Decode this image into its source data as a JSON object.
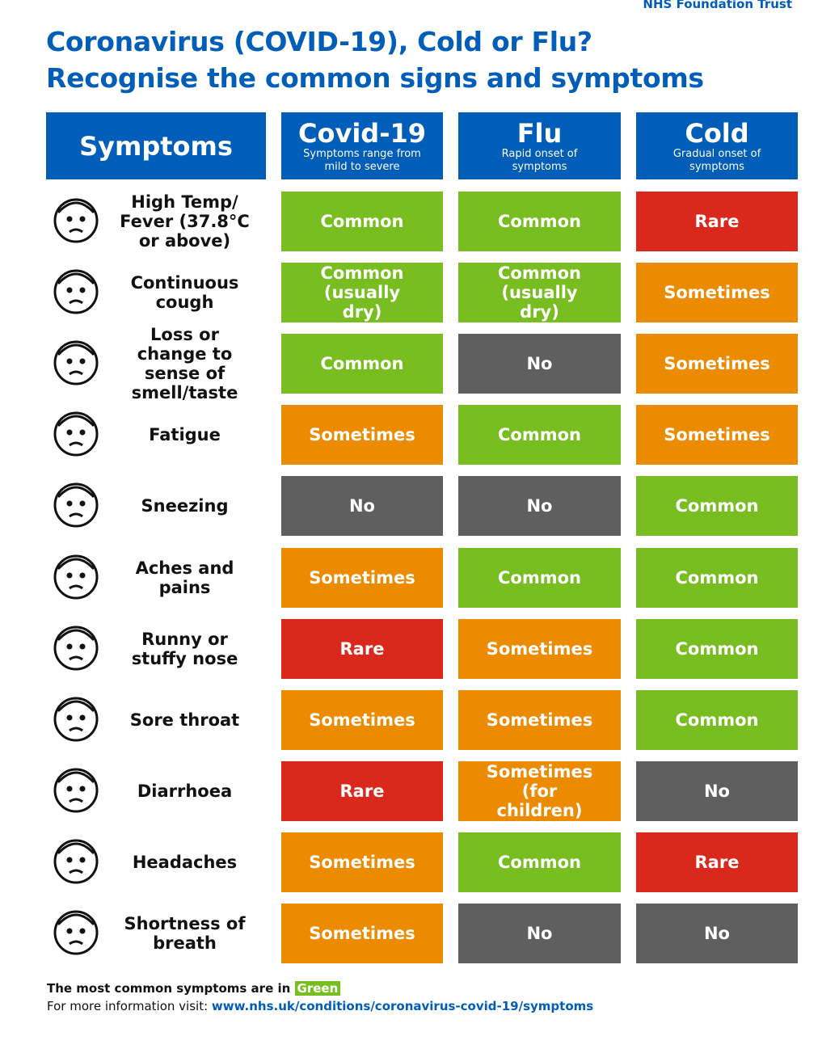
{
  "header": {
    "organisation": "NHS Foundation Trust",
    "title": [
      "Coronavirus (COVID-19), Cold or Flu?",
      "Recognise the common signs and symptoms"
    ],
    "color": "#005eb8"
  },
  "table": {
    "header_color": "#005eb8",
    "columns": [
      {
        "title": "Symptoms"
      },
      {
        "title": "Covid-19",
        "subtitle": "Symptoms range from mild to severe"
      },
      {
        "title": "Flu",
        "subtitle": "Rapid onset of symptoms"
      },
      {
        "title": "Cold",
        "subtitle": "Gradual onset of symptoms"
      }
    ],
    "rows": [
      {
        "symptom": "High Temp/ Fever (37.8°C or above)",
        "cells": [
          {
            "text": "Common",
            "color": "#78be20"
          },
          {
            "text": "Common",
            "color": "#78be20"
          },
          {
            "text": "Rare",
            "color": "#da291c"
          }
        ]
      },
      {
        "symptom": "Continuous cough",
        "cells": [
          {
            "text": "Common (usually dry)",
            "color": "#78be20"
          },
          {
            "text": "Common (usually dry)",
            "color": "#78be20"
          },
          {
            "text": "Sometimes",
            "color": "#ed8b00"
          }
        ]
      },
      {
        "symptom": "Loss or change to sense of smell/taste",
        "cells": [
          {
            "text": "Common",
            "color": "#78be20"
          },
          {
            "text": "No",
            "color": "#5f5f5f"
          },
          {
            "text": "Sometimes",
            "color": "#ed8b00"
          }
        ]
      },
      {
        "symptom": "Fatigue",
        "cells": [
          {
            "text": "Sometimes",
            "color": "#ed8b00"
          },
          {
            "text": "Common",
            "color": "#78be20"
          },
          {
            "text": "Sometimes",
            "color": "#ed8b00"
          }
        ]
      },
      {
        "symptom": "Sneezing",
        "cells": [
          {
            "text": "No",
            "color": "#5f5f5f"
          },
          {
            "text": "No",
            "color": "#5f5f5f"
          },
          {
            "text": "Common",
            "color": "#78be20"
          }
        ]
      },
      {
        "symptom": "Aches and pains",
        "cells": [
          {
            "text": "Sometimes",
            "color": "#ed8b00"
          },
          {
            "text": "Common",
            "color": "#78be20"
          },
          {
            "text": "Common",
            "color": "#78be20"
          }
        ]
      },
      {
        "symptom": "Runny or stuffy nose",
        "cells": [
          {
            "text": "Rare",
            "color": "#da291c"
          },
          {
            "text": "Sometimes",
            "color": "#ed8b00"
          },
          {
            "text": "Common",
            "color": "#78be20"
          }
        ]
      },
      {
        "symptom": "Sore throat",
        "cells": [
          {
            "text": "Sometimes",
            "color": "#ed8b00"
          },
          {
            "text": "Sometimes",
            "color": "#ed8b00"
          },
          {
            "text": "Common",
            "color": "#78be20"
          }
        ]
      },
      {
        "symptom": "Diarrhoea",
        "cells": [
          {
            "text": "Rare",
            "color": "#da291c"
          },
          {
            "text": "Sometimes (for children)",
            "color": "#ed8b00"
          },
          {
            "text": "No",
            "color": "#5f5f5f"
          }
        ]
      },
      {
        "symptom": "Headaches",
        "cells": [
          {
            "text": "Sometimes",
            "color": "#ed8b00"
          },
          {
            "text": "Common",
            "color": "#78be20"
          },
          {
            "text": "Rare",
            "color": "#da291c"
          }
        ]
      },
      {
        "symptom": "Shortness of breath",
        "cells": [
          {
            "text": "Sometimes",
            "color": "#ed8b00"
          },
          {
            "text": "No",
            "color": "#5f5f5f"
          },
          {
            "text": "No",
            "color": "#5f5f5f"
          }
        ]
      }
    ]
  },
  "footer": {
    "note": "The most common  symptoms are in",
    "highlight": "Green",
    "highlight_color": "#78be20",
    "info": "For more information visit:",
    "link": "www.nhs.uk/conditions/coronavirus-covid-19/symptoms"
  }
}
